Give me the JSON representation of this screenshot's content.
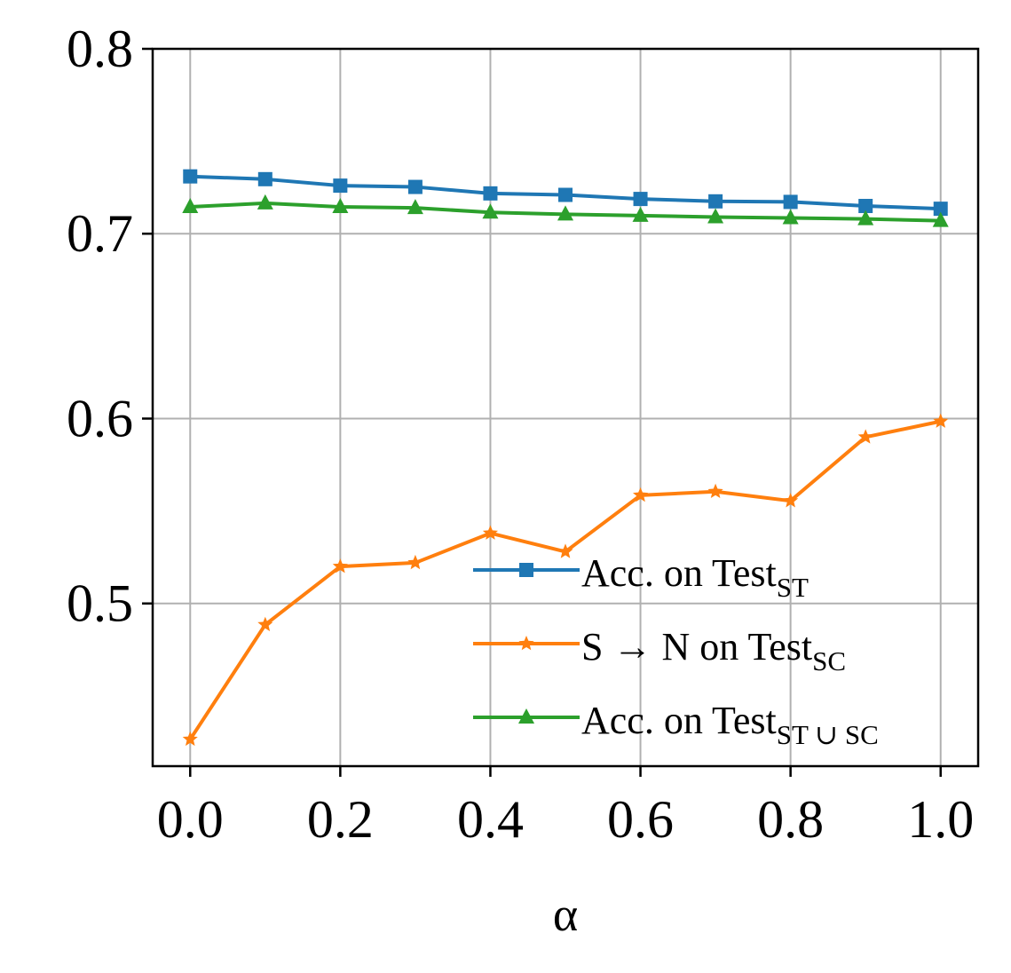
{
  "chart_data": {
    "type": "line",
    "title": "",
    "xlabel": "α",
    "ylabel": "",
    "x": [
      0.0,
      0.1,
      0.2,
      0.3,
      0.4,
      0.5,
      0.6,
      0.7,
      0.8,
      0.9,
      1.0
    ],
    "xlim": [
      -0.05,
      1.05
    ],
    "ylim": [
      0.412,
      0.8
    ],
    "xticks": [
      "0.0",
      "0.2",
      "0.4",
      "0.6",
      "0.8",
      "1.0"
    ],
    "xtick_values": [
      0.0,
      0.2,
      0.4,
      0.6,
      0.8,
      1.0
    ],
    "yticks": [
      "0.5",
      "0.6",
      "0.7",
      "0.8"
    ],
    "ytick_values": [
      0.5,
      0.6,
      0.7,
      0.8
    ],
    "grid": true,
    "legend_position": "lower-right",
    "series": [
      {
        "key": "st",
        "label_main": "Acc. on Test",
        "label_sub": "ST",
        "color": "#1f77b4",
        "marker": "square",
        "values": [
          0.731,
          0.7295,
          0.726,
          0.7253,
          0.7218,
          0.721,
          0.7188,
          0.7175,
          0.7172,
          0.715,
          0.7135
        ]
      },
      {
        "key": "sn",
        "label_main": "S → N on Test",
        "label_sub": "SC",
        "color": "#ff7f0e",
        "marker": "star",
        "values": [
          0.4265,
          0.4885,
          0.52,
          0.522,
          0.538,
          0.528,
          0.5585,
          0.5605,
          0.5555,
          0.59,
          0.5985
        ]
      },
      {
        "key": "stsc",
        "label_main": "Acc. on Test",
        "label_sub": "ST ∪ SC",
        "color": "#2ca02c",
        "marker": "triangle",
        "values": [
          0.7145,
          0.7165,
          0.7145,
          0.714,
          0.7115,
          0.7105,
          0.7098,
          0.709,
          0.7085,
          0.708,
          0.707
        ]
      }
    ]
  }
}
